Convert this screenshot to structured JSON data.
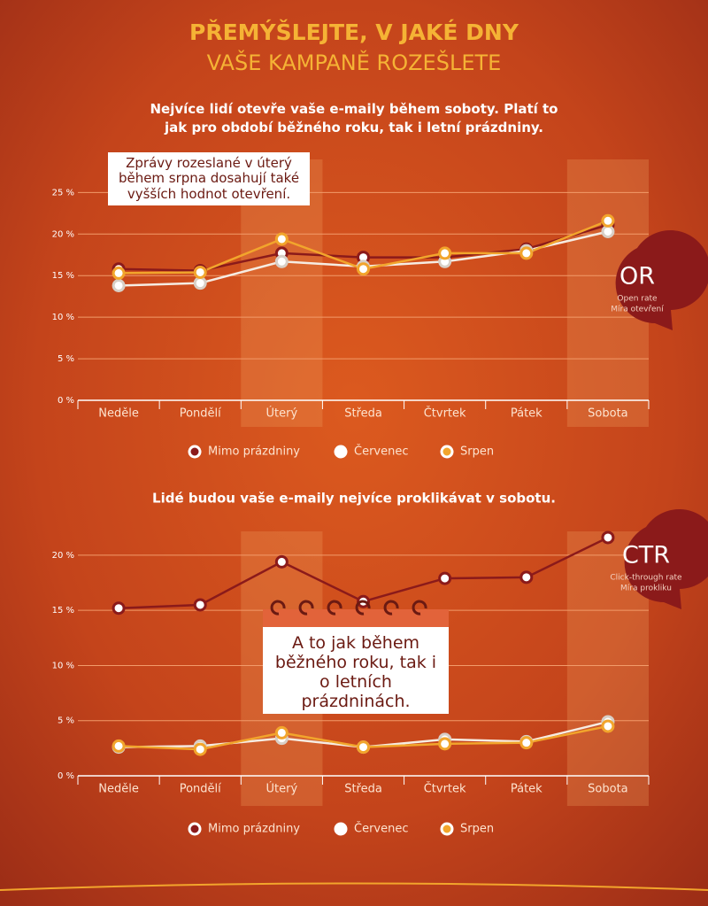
{
  "header": {
    "title": "PŘEMÝŠLEJTE, V JAKÉ DNY",
    "subtitle": "VAŠE KAMPANĚ ROZEŠLETE"
  },
  "chart_data": [
    {
      "type": "line",
      "title": "Nejvíce lidí otevře vaše e-maily během soboty. Platí to jak pro období běžného roku, tak i letní prázdniny.",
      "annotation": "Zprávy rozeslané v úterý během srpna dosahují také vyšších hodnot otevření.",
      "badge": {
        "label": "OR",
        "line1": "Open rate",
        "line2": "Míra otevření"
      },
      "categories": [
        "Neděle",
        "Pondělí",
        "Úterý",
        "Středa",
        "Čtvrtek",
        "Pátek",
        "Sobota"
      ],
      "highlight": [
        2,
        6
      ],
      "series": [
        {
          "name": "Mimo prázdniny",
          "color": "#8b1a1a",
          "values": [
            15.8,
            15.6,
            17.7,
            17.2,
            17.2,
            18.2,
            21.1
          ]
        },
        {
          "name": "Červenec",
          "color": "#f6ece2",
          "values": [
            13.8,
            14.1,
            16.7,
            16.1,
            16.7,
            18.0,
            20.3
          ]
        },
        {
          "name": "Srpen",
          "color": "#f2a52c",
          "values": [
            15.3,
            15.4,
            19.4,
            15.8,
            17.7,
            17.7,
            21.6
          ]
        }
      ],
      "ylim": [
        0,
        26
      ],
      "yticks": [
        {
          "value": 0,
          "label": "0 %"
        },
        {
          "value": 5,
          "label": "5 %"
        },
        {
          "value": 10,
          "label": "10 %"
        },
        {
          "value": 15,
          "label": "15 %"
        },
        {
          "value": 20,
          "label": "20 %"
        },
        {
          "value": 25,
          "label": "25 %"
        }
      ],
      "grid": true
    },
    {
      "type": "line",
      "title": "Lidé budou vaše e-maily nejvíce proklikávat v sobotu.",
      "annotation": "A to jak během běžného roku, tak i o letních prázdninách.",
      "badge": {
        "label": "CTR",
        "line1": "Click-through rate",
        "line2": "Míra prokliku"
      },
      "categories": [
        "Neděle",
        "Pondělí",
        "Úterý",
        "Středa",
        "Čtvrtek",
        "Pátek",
        "Sobota"
      ],
      "highlight": [
        2,
        6
      ],
      "series": [
        {
          "name": "Mimo prázdniny",
          "color": "#8b1a1a",
          "values": [
            15.2,
            15.5,
            19.4,
            15.8,
            17.9,
            18.0,
            21.6
          ]
        },
        {
          "name": "Červenec",
          "color": "#f6ece2",
          "values": [
            2.6,
            2.7,
            3.4,
            2.6,
            3.3,
            3.1,
            4.9
          ]
        },
        {
          "name": "Srpen",
          "color": "#f2a52c",
          "values": [
            2.7,
            2.4,
            3.9,
            2.6,
            2.9,
            3.0,
            4.5
          ]
        }
      ],
      "ylim": [
        0,
        22
      ],
      "yticks": [
        {
          "value": 0,
          "label": "0 %"
        },
        {
          "value": 5,
          "label": "5 %"
        },
        {
          "value": 10,
          "label": "10 %"
        },
        {
          "value": 15,
          "label": "15 %"
        },
        {
          "value": 20,
          "label": "20 %"
        }
      ],
      "grid": true
    }
  ]
}
